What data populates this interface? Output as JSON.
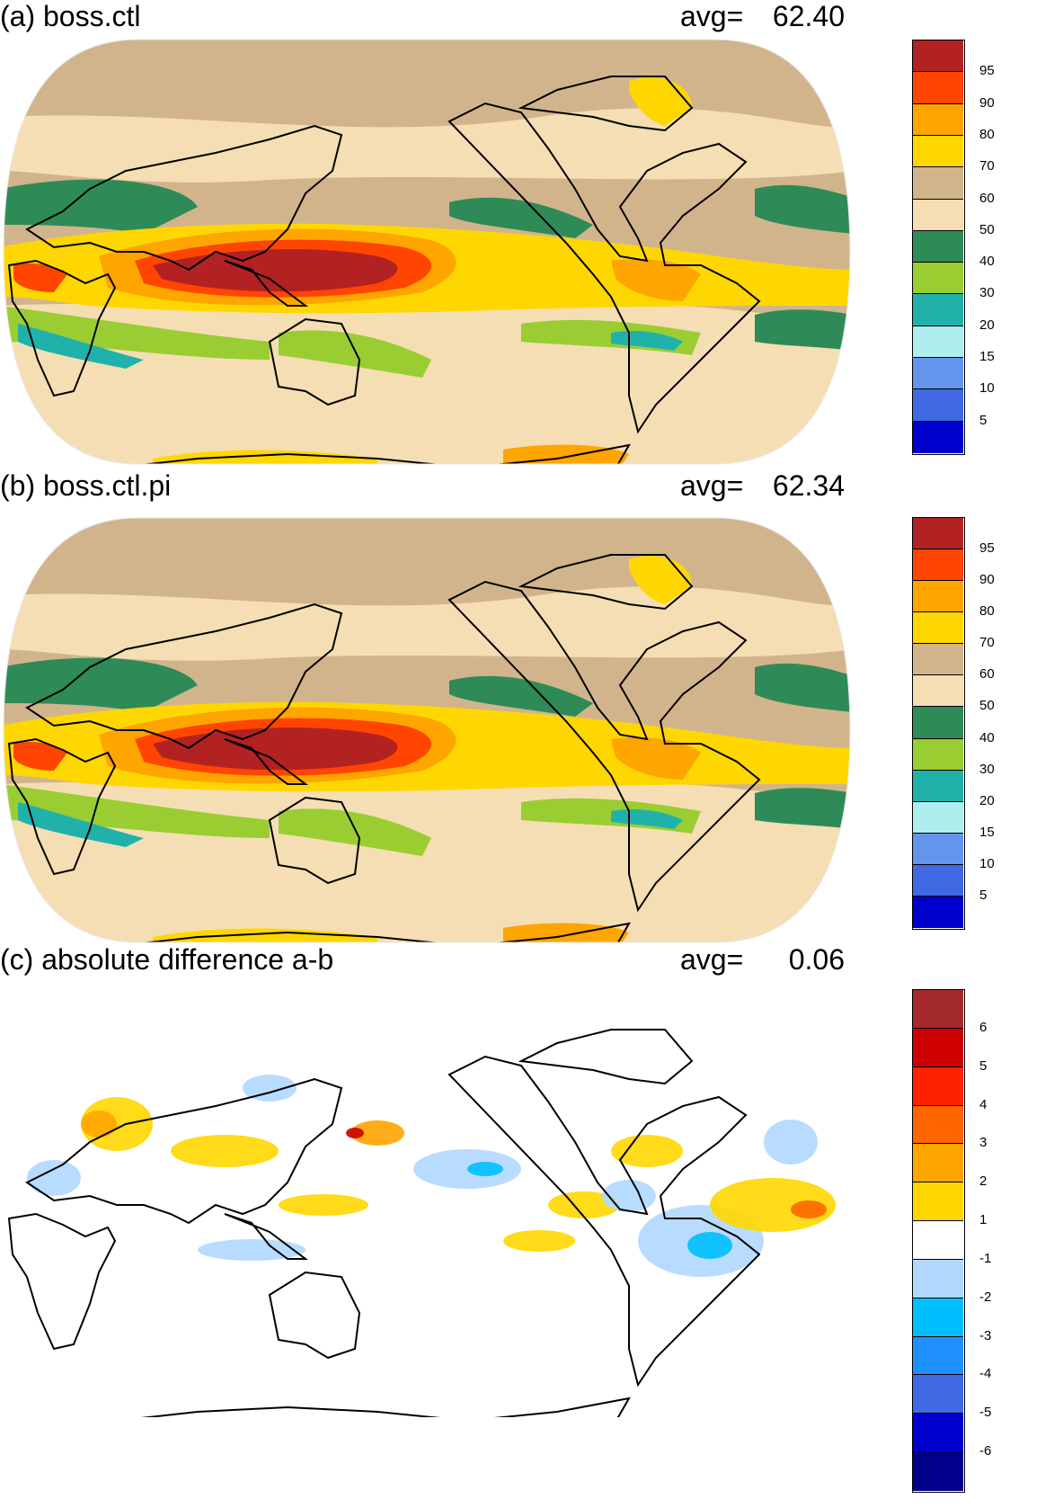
{
  "panels": [
    {
      "id": "a",
      "title": "(a) boss.ctl",
      "avg_label": "avg=",
      "avg_value": "62.40",
      "colorbar": {
        "labels": [
          "95",
          "90",
          "80",
          "70",
          "60",
          "50",
          "40",
          "30",
          "20",
          "15",
          "10",
          "5"
        ],
        "colors": [
          "#b22222",
          "#ff4500",
          "#ffa500",
          "#ffd700",
          "#d2b48c",
          "#f5deb3",
          "#2e8b57",
          "#9acd32",
          "#20b2aa",
          "#afeeee",
          "#6495ed",
          "#4169e1",
          "#0000cd"
        ]
      }
    },
    {
      "id": "b",
      "title": "(b) boss.ctl.pi",
      "avg_label": "avg=",
      "avg_value": "62.34",
      "colorbar": {
        "labels": [
          "95",
          "90",
          "80",
          "70",
          "60",
          "50",
          "40",
          "30",
          "20",
          "15",
          "10",
          "5"
        ],
        "colors": [
          "#b22222",
          "#ff4500",
          "#ffa500",
          "#ffd700",
          "#d2b48c",
          "#f5deb3",
          "#2e8b57",
          "#9acd32",
          "#20b2aa",
          "#afeeee",
          "#6495ed",
          "#4169e1",
          "#0000cd"
        ]
      }
    },
    {
      "id": "c",
      "title": "(c) absolute difference a-b",
      "avg_label": "avg=",
      "avg_value": "0.06",
      "colorbar": {
        "labels": [
          "6",
          "5",
          "4",
          "3",
          "2",
          "1",
          "-1",
          "-2",
          "-3",
          "-4",
          "-5",
          "-6"
        ],
        "colors": [
          "#a52a2a",
          "#cc0000",
          "#ff2200",
          "#ff6600",
          "#ffa500",
          "#ffd700",
          "#ffffff",
          "#b0d8ff",
          "#00bfff",
          "#1e90ff",
          "#4169e1",
          "#0000cd",
          "#00008b"
        ]
      }
    }
  ]
}
